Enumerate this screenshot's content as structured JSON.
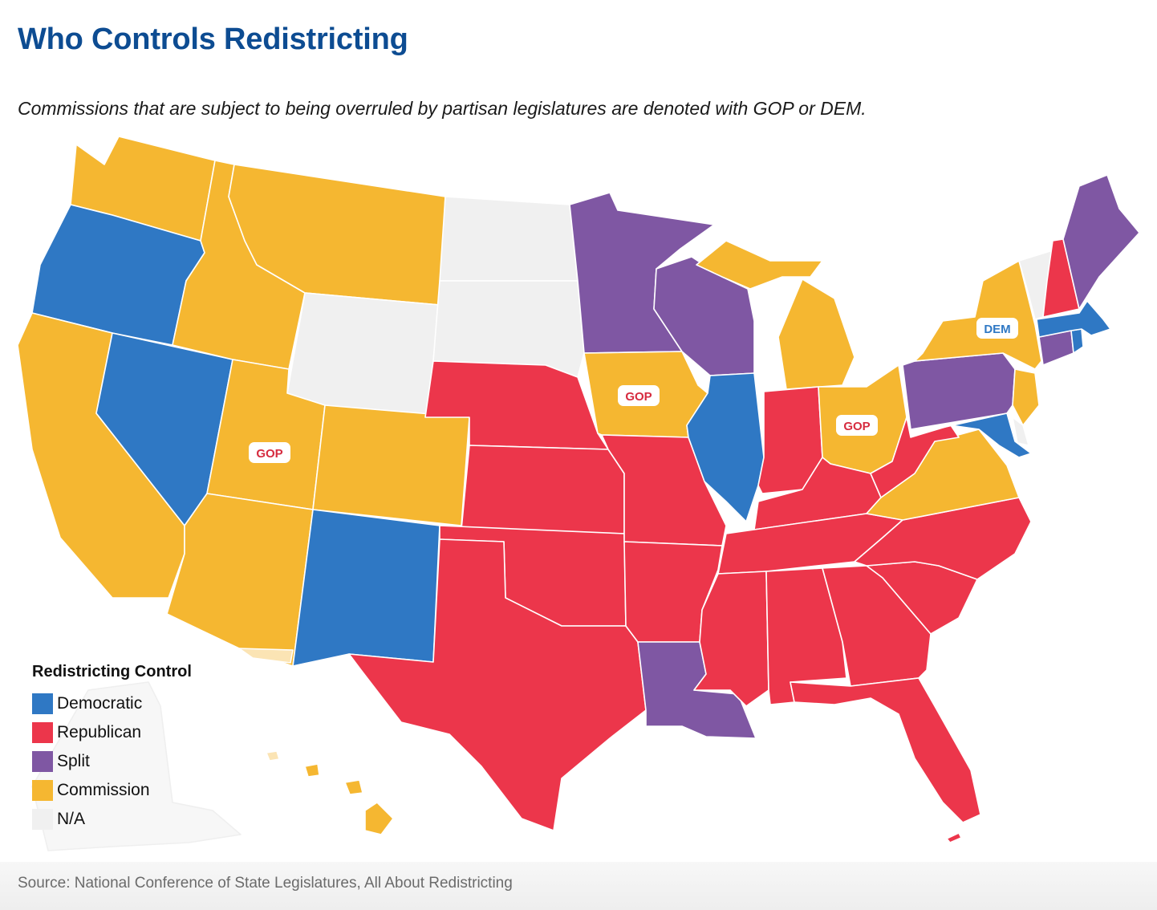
{
  "title": "Who Controls Redistricting",
  "subtitle": "Commissions that are subject to being overruled by partisan legislatures are denoted with GOP or DEM.",
  "legend": {
    "title": "Redistricting Control",
    "items": [
      {
        "label": "Democratic",
        "color": "#2f78c4"
      },
      {
        "label": "Republican",
        "color": "#ec364b"
      },
      {
        "label": "Split",
        "color": "#7f57a3"
      },
      {
        "label": "Commission",
        "color": "#f5b731"
      },
      {
        "label": "N/A",
        "color": "#f0f0f0"
      }
    ]
  },
  "badges": {
    "ut": "GOP",
    "ia": "GOP",
    "oh": "GOP",
    "ny": "DEM"
  },
  "badge_colors": {
    "gop": "#d62b3f",
    "dem": "#2f78c4"
  },
  "colors": {
    "dem": "#2f78c4",
    "rep": "#ec364b",
    "split": "#7f57a3",
    "comm": "#f5b731",
    "na": "#f0f0f0",
    "border": "#ffffff"
  },
  "source": "Source: National Conference of State Legislatures, All About Redistricting"
}
